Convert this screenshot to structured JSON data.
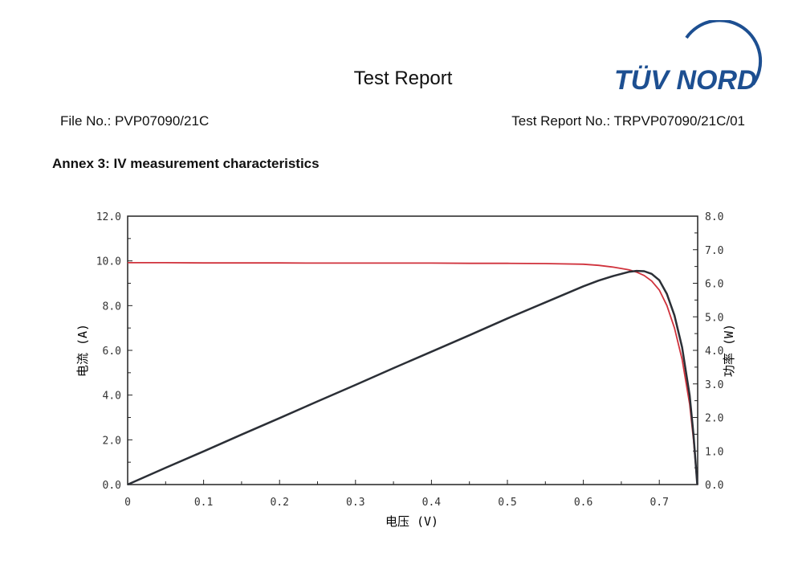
{
  "header": {
    "title": "Test Report",
    "file_no": "File No.: PVP07090/21C",
    "report_no": "Test Report No.: TRPVP07090/21C/01",
    "logo_text": "TÜV NORD",
    "brand_color": "#1d4f91"
  },
  "annex_title": "Annex 3: IV measurement characteristics",
  "chart_data": {
    "type": "line",
    "xlabel": "电压 (V)",
    "ylabel": "电流 (A)",
    "y2label": "功率 (W)",
    "xlim": [
      0,
      0.75
    ],
    "ylim": [
      0,
      12
    ],
    "y2lim": [
      0,
      8
    ],
    "x_ticks": [
      "0",
      "0.1",
      "0.2",
      "0.3",
      "0.4",
      "0.5",
      "0.6",
      "0.7"
    ],
    "y_ticks": [
      "0.0",
      "2.0",
      "4.0",
      "6.0",
      "8.0",
      "10.0",
      "12.0"
    ],
    "y2_ticks": [
      "0.0",
      "1.0",
      "2.0",
      "3.0",
      "4.0",
      "5.0",
      "6.0",
      "7.0",
      "8.0"
    ],
    "grid": false,
    "x": [
      0,
      0.05,
      0.1,
      0.15,
      0.2,
      0.25,
      0.3,
      0.35,
      0.4,
      0.45,
      0.5,
      0.55,
      0.6,
      0.62,
      0.64,
      0.66,
      0.67,
      0.68,
      0.69,
      0.7,
      0.71,
      0.72,
      0.73,
      0.74,
      0.745,
      0.75
    ],
    "series": [
      {
        "axis": "left",
        "color": "#d0323c",
        "values": [
          9.92,
          9.92,
          9.91,
          9.91,
          9.91,
          9.9,
          9.9,
          9.9,
          9.9,
          9.89,
          9.89,
          9.88,
          9.85,
          9.8,
          9.72,
          9.6,
          9.5,
          9.35,
          9.1,
          8.7,
          8.0,
          7.0,
          5.6,
          3.6,
          2.0,
          0
        ]
      },
      {
        "axis": "right",
        "color": "#2b2f36",
        "values": [
          0,
          0.5,
          0.99,
          1.49,
          1.98,
          2.48,
          2.97,
          3.47,
          3.96,
          4.45,
          4.95,
          5.43,
          5.91,
          6.08,
          6.22,
          6.34,
          6.37,
          6.36,
          6.28,
          6.09,
          5.68,
          5.04,
          4.09,
          2.66,
          1.49,
          0
        ]
      }
    ]
  }
}
